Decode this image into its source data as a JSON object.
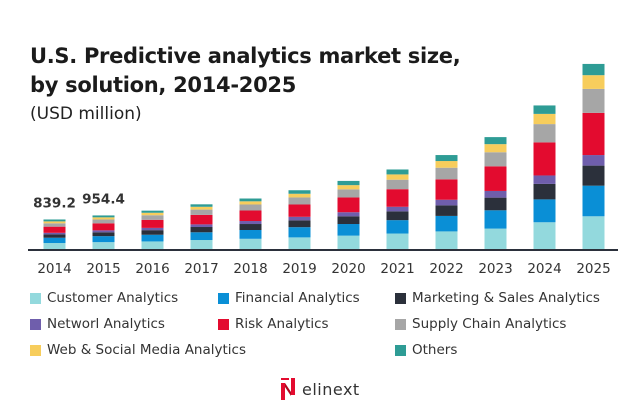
{
  "chart_data": {
    "type": "bar",
    "stacked": true,
    "title": "U.S. Predictive analytics market size, by solution, 2014-2025",
    "title_lines": [
      "U.S. Predictive analytics market size,",
      "by solution, 2014-2025"
    ],
    "subtitle": "(USD million)",
    "xlabel": "",
    "ylabel": "",
    "ylim": [
      0,
      5400
    ],
    "grid": false,
    "legend_position": "bottom",
    "categories": [
      "2014",
      "2015",
      "2016",
      "2017",
      "2018",
      "2019",
      "2020",
      "2021",
      "2022",
      "2023",
      "2024",
      "2025"
    ],
    "annotations": [
      {
        "category": "2014",
        "text": "839.2"
      },
      {
        "category": "2015",
        "text": "954.4"
      }
    ],
    "series": [
      {
        "name": "Customer Analytics",
        "color": "#93d9dd",
        "values": [
          170,
          195,
          215,
          255,
          290,
          330,
          380,
          440,
          500,
          580,
          760,
          930
        ]
      },
      {
        "name": "Financial Analytics",
        "color": "#0a8fd6",
        "values": [
          150,
          170,
          190,
          220,
          250,
          290,
          330,
          380,
          440,
          520,
          650,
          870
        ]
      },
      {
        "name": "Marketing & Sales Analytics",
        "color": "#2b303b",
        "values": [
          95,
          110,
          130,
          150,
          170,
          195,
          220,
          250,
          300,
          360,
          440,
          570
        ]
      },
      {
        "name": "Networl Analytics",
        "color": "#6f5eac",
        "values": [
          45,
          55,
          65,
          75,
          85,
          100,
          115,
          130,
          160,
          190,
          240,
          300
        ]
      },
      {
        "name": "Risk Analytics",
        "color": "#e30b2f",
        "values": [
          175,
          200,
          230,
          270,
          300,
          350,
          420,
          500,
          580,
          700,
          940,
          1200
        ]
      },
      {
        "name": "Supply Chain Analytics",
        "color": "#a6a6a6",
        "values": [
          95,
          110,
          130,
          150,
          170,
          200,
          230,
          270,
          330,
          400,
          520,
          680
        ]
      },
      {
        "name": "Web & Social Media Analytics",
        "color": "#f7cd5c",
        "values": [
          55,
          60,
          70,
          80,
          90,
          105,
          120,
          150,
          190,
          230,
          290,
          390
        ]
      },
      {
        "name": "Others",
        "color": "#2e9c95",
        "values": [
          54,
          54,
          60,
          70,
          80,
          100,
          120,
          140,
          170,
          200,
          240,
          320
        ]
      }
    ]
  },
  "legend": {
    "items": [
      {
        "label": "Customer Analytics",
        "color": "#93d9dd"
      },
      {
        "label": "Financial Analytics",
        "color": "#0a8fd6"
      },
      {
        "label": "Marketing & Sales Analytics",
        "color": "#2b303b"
      },
      {
        "label": "Networl Analytics",
        "color": "#6f5eac"
      },
      {
        "label": "Risk Analytics",
        "color": "#e30b2f"
      },
      {
        "label": "Supply Chain Analytics",
        "color": "#a6a6a6"
      },
      {
        "label": "Web & Social Media Analytics",
        "color": "#f7cd5c"
      },
      {
        "label": "Others",
        "color": "#2e9c95"
      }
    ]
  },
  "branding": {
    "logo_text": "elinext",
    "accent": "#e30b2f"
  }
}
